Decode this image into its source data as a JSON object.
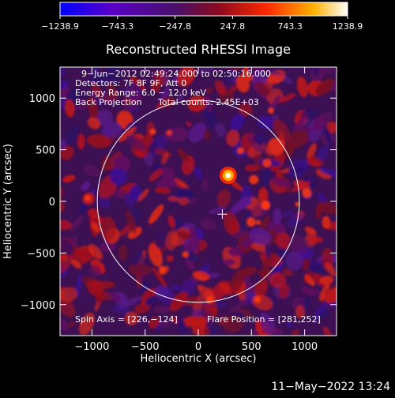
{
  "chart_data": {
    "type": "heatmap",
    "title": "Reconstructed RHESSI Image",
    "xlabel": "Heliocentric X (arcsec)",
    "ylabel": "Heliocentric Y (arcsec)",
    "xlim": [
      -1300,
      1300
    ],
    "ylim": [
      -1300,
      1300
    ],
    "xticks": [
      -1000,
      -500,
      0,
      500,
      1000
    ],
    "yticks": [
      1000,
      500,
      0,
      -500,
      -1000
    ],
    "xtick_labels": [
      "−1000",
      "−500",
      "0",
      "500",
      "1000"
    ],
    "ytick_labels": [
      "1000",
      "500",
      "0",
      "−500",
      "−1000"
    ],
    "colorbar": {
      "range": [
        -1238.9,
        1238.9
      ],
      "ticks": [
        -1238.9,
        -743.3,
        -247.8,
        247.8,
        743.3,
        1238.9
      ],
      "tick_labels": [
        "−1238.9",
        "−743.3",
        "−247.8",
        "247.8",
        "743.3",
        "1238.9"
      ],
      "colors": [
        "#0000ff",
        "#5a00c8",
        "#48106a",
        "#8a0a20",
        "#ff2a00",
        "#ffb000",
        "#ffffff"
      ]
    },
    "annotations": {
      "time_range": "9−Jun−2012 02:49:24.000 to 02:50:16.000",
      "detectors": "Detectors: 7F 8F 9F, Att 0",
      "energy_range": "Energy Range: 6.0 − 12.0 keV",
      "method": "Back Projection",
      "total_counts": "Total counts: 2.45E+03",
      "spin_axis": "Spin Axis = [226,−124]",
      "flare_position": "Flare Position = [281,252]"
    },
    "solar_limb_radius_arcsec": 950,
    "spin_axis": [
      226,
      -124
    ],
    "flare_position": [
      281,
      252
    ],
    "peak_source": [
      281,
      252
    ]
  },
  "footer": {
    "timestamp": "11−May−2022 13:24"
  }
}
